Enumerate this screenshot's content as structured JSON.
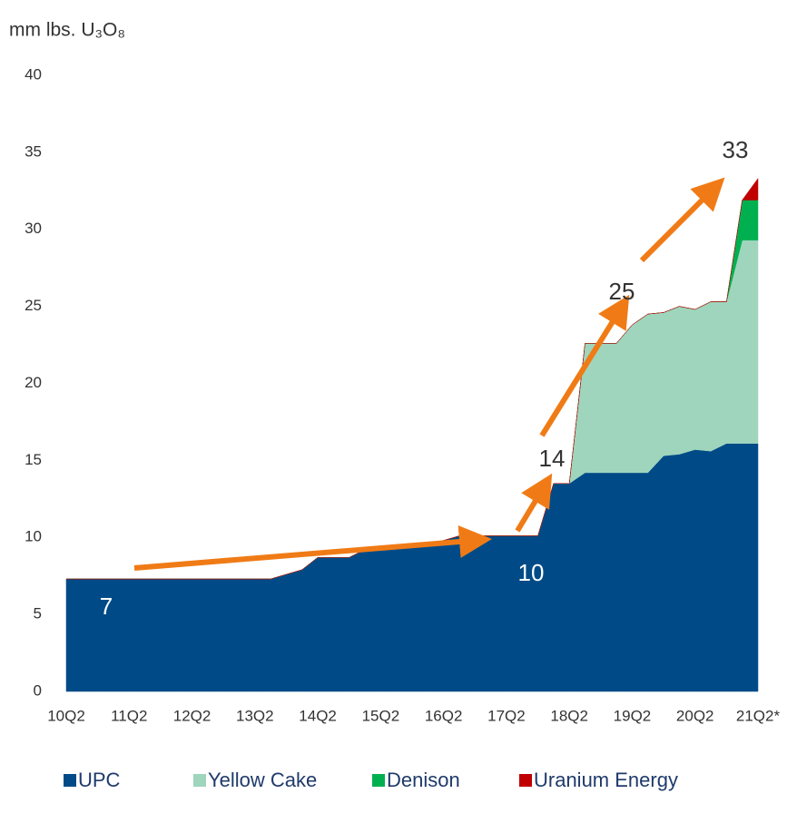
{
  "chart_data": {
    "type": "stacked_area",
    "y_axis_label": "mm lbs. U₃O₈",
    "categories": [
      "10Q2",
      null,
      null,
      null,
      "11Q2",
      null,
      null,
      null,
      "12Q2",
      null,
      null,
      null,
      "13Q2",
      null,
      null,
      null,
      "14Q2",
      null,
      null,
      null,
      "15Q2",
      null,
      null,
      null,
      "16Q2",
      null,
      null,
      null,
      "17Q2",
      null,
      null,
      null,
      "18Q2",
      null,
      null,
      null,
      "19Q2",
      null,
      null,
      null,
      "20Q2",
      null,
      null,
      null,
      "21Q2*"
    ],
    "series": [
      {
        "name": "UPC",
        "color": "#004b87",
        "values": [
          7.3,
          7.3,
          7.3,
          7.3,
          7.3,
          7.3,
          7.3,
          7.3,
          7.3,
          7.3,
          7.3,
          7.3,
          7.3,
          7.3,
          7.6,
          7.9,
          8.7,
          8.7,
          8.7,
          9.2,
          9.2,
          9.3,
          9.5,
          9.6,
          9.8,
          10.1,
          10.1,
          10.1,
          10.1,
          10.1,
          10.1,
          13.5,
          13.5,
          14.2,
          14.2,
          14.2,
          14.2,
          14.2,
          15.3,
          15.4,
          15.7,
          15.6,
          16.1,
          16.1,
          16.1
        ]
      },
      {
        "name": "Yellow Cake",
        "color": "#9fd5bd",
        "values": [
          0,
          0,
          0,
          0,
          0,
          0,
          0,
          0,
          0,
          0,
          0,
          0,
          0,
          0,
          0,
          0,
          0,
          0,
          0,
          0,
          0,
          0,
          0,
          0,
          0,
          0,
          0,
          0,
          0,
          0,
          0,
          0,
          0,
          8.4,
          8.4,
          8.4,
          9.6,
          10.3,
          9.3,
          9.6,
          9.1,
          9.7,
          9.2,
          13.2,
          13.2
        ]
      },
      {
        "name": "Denison",
        "color": "#00b050",
        "values": [
          0,
          0,
          0,
          0,
          0,
          0,
          0,
          0,
          0,
          0,
          0,
          0,
          0,
          0,
          0,
          0,
          0,
          0,
          0,
          0,
          0,
          0,
          0,
          0,
          0,
          0,
          0,
          0,
          0,
          0,
          0,
          0,
          0,
          0,
          0,
          0,
          0,
          0,
          0,
          0,
          0,
          0,
          0,
          2.6,
          2.6
        ]
      },
      {
        "name": "Uranium Energy",
        "color": "#c00000",
        "values": [
          0,
          0,
          0,
          0,
          0,
          0,
          0,
          0,
          0,
          0,
          0,
          0,
          0,
          0,
          0,
          0,
          0,
          0,
          0,
          0,
          0,
          0,
          0,
          0,
          0,
          0,
          0,
          0,
          0,
          0,
          0,
          0,
          0,
          0,
          0,
          0,
          0,
          0,
          0,
          0,
          0,
          0,
          0,
          0,
          1.4
        ]
      }
    ],
    "annotations": [
      "7",
      "10",
      "14",
      "25",
      "33"
    ],
    "ylim": [
      0,
      40
    ],
    "yticks": [
      0,
      5,
      10,
      15,
      20,
      25,
      30,
      35,
      40
    ],
    "grid": false,
    "legend": "bottom"
  }
}
